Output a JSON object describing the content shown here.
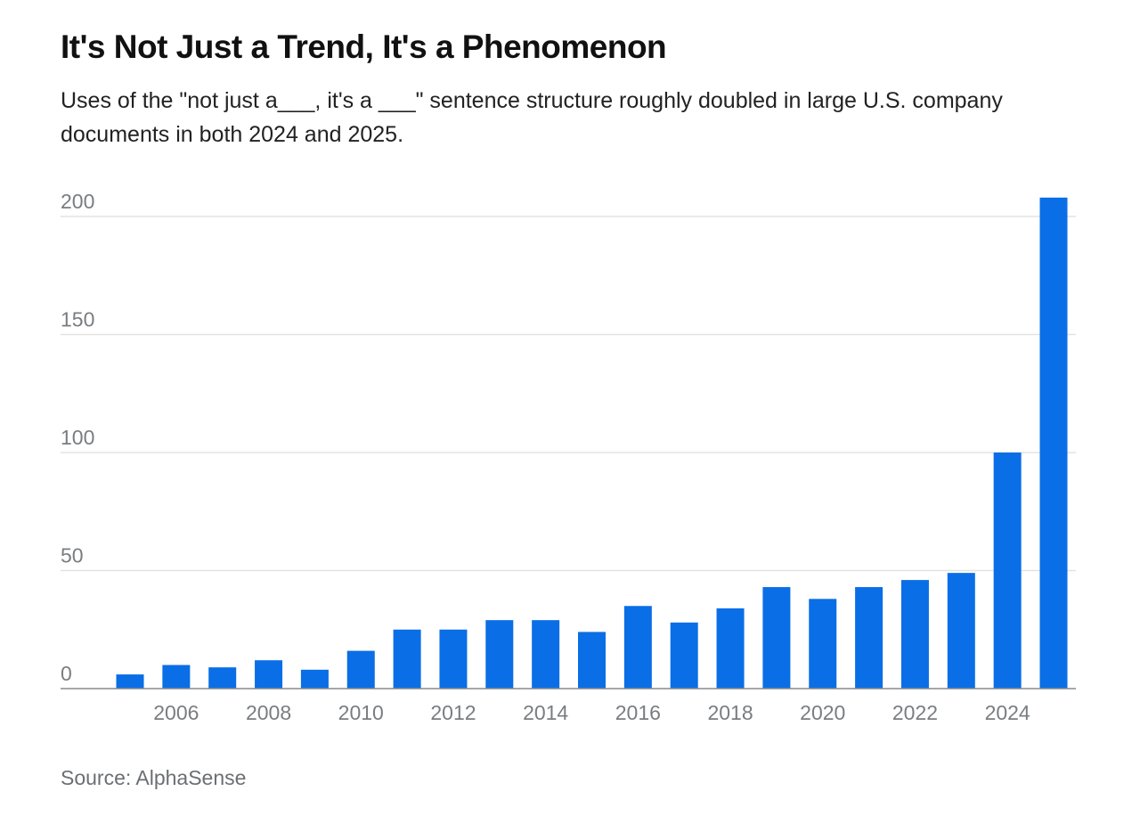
{
  "title": "It's Not Just a Trend, It's a Phenomenon",
  "subtitle": "Uses of the \"not just a___, it's a ___\" sentence structure roughly doubled in large U.S. company documents in both 2024 and 2025.",
  "source": "Source: AlphaSense",
  "chart_data": {
    "type": "bar",
    "title": "It's Not Just a Trend, It's a Phenomenon",
    "xlabel": "",
    "ylabel": "",
    "categories": [
      2005,
      2006,
      2007,
      2008,
      2009,
      2010,
      2011,
      2012,
      2013,
      2014,
      2015,
      2016,
      2017,
      2018,
      2019,
      2020,
      2021,
      2022,
      2023,
      2024,
      2025
    ],
    "values": [
      6,
      10,
      9,
      12,
      8,
      16,
      25,
      25,
      29,
      29,
      24,
      35,
      28,
      34,
      43,
      38,
      43,
      46,
      49,
      100,
      208
    ],
    "ylim": [
      0,
      210
    ],
    "yticks": [
      0,
      50,
      100,
      150,
      200
    ],
    "xticks": [
      2006,
      2008,
      2010,
      2012,
      2014,
      2016,
      2018,
      2020,
      2022,
      2024
    ],
    "grid": true,
    "legend": "none",
    "bar_color": "#0a6ee6",
    "grid_color": "#e3e3e3",
    "axis_color": "#8a8a8a"
  }
}
